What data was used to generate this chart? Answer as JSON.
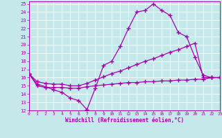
{
  "bg_color": "#c5e8ea",
  "line_color": "#aa00aa",
  "xlabel": "Windchill (Refroidissement éolien,°C)",
  "xlim": [
    0,
    23
  ],
  "ylim": [
    12,
    25.3
  ],
  "xticks": [
    0,
    1,
    2,
    3,
    4,
    5,
    6,
    7,
    8,
    9,
    10,
    11,
    12,
    13,
    14,
    15,
    16,
    17,
    18,
    19,
    20,
    21,
    22,
    23
  ],
  "yticks": [
    12,
    13,
    14,
    15,
    16,
    17,
    18,
    19,
    20,
    21,
    22,
    23,
    24,
    25
  ],
  "line1_x": [
    0,
    1,
    2,
    3,
    4,
    5,
    6,
    7,
    8,
    9,
    10,
    11,
    12,
    13,
    14,
    15,
    16,
    17,
    18,
    19,
    20,
    21,
    22,
    23
  ],
  "line1_y": [
    16.5,
    15.2,
    14.9,
    14.5,
    14.2,
    13.5,
    13.2,
    12.1,
    14.7,
    17.5,
    18.0,
    19.8,
    22.0,
    24.0,
    24.2,
    25.0,
    24.2,
    23.6,
    21.5,
    21.0,
    18.5,
    16.3,
    16.0,
    16.0
  ],
  "line2_x": [
    0,
    1,
    2,
    3,
    4,
    5,
    6,
    7,
    8,
    9,
    10,
    11,
    12,
    13,
    14,
    15,
    16,
    17,
    18,
    19,
    20,
    21,
    22,
    23
  ],
  "line2_y": [
    16.5,
    15.5,
    15.3,
    15.2,
    15.2,
    15.0,
    15.0,
    15.3,
    15.7,
    16.1,
    16.5,
    16.8,
    17.2,
    17.6,
    18.0,
    18.3,
    18.7,
    19.1,
    19.4,
    19.8,
    20.2,
    16.0,
    16.0,
    16.0
  ],
  "line3_x": [
    0,
    1,
    2,
    3,
    4,
    5,
    6,
    7,
    8,
    9,
    10,
    11,
    12,
    13,
    14,
    15,
    16,
    17,
    18,
    19,
    20,
    21,
    22,
    23
  ],
  "line3_y": [
    16.5,
    15.0,
    14.8,
    14.8,
    14.8,
    14.7,
    14.7,
    14.9,
    15.0,
    15.1,
    15.2,
    15.3,
    15.4,
    15.4,
    15.5,
    15.5,
    15.6,
    15.6,
    15.7,
    15.7,
    15.8,
    15.8,
    16.0,
    16.0
  ]
}
